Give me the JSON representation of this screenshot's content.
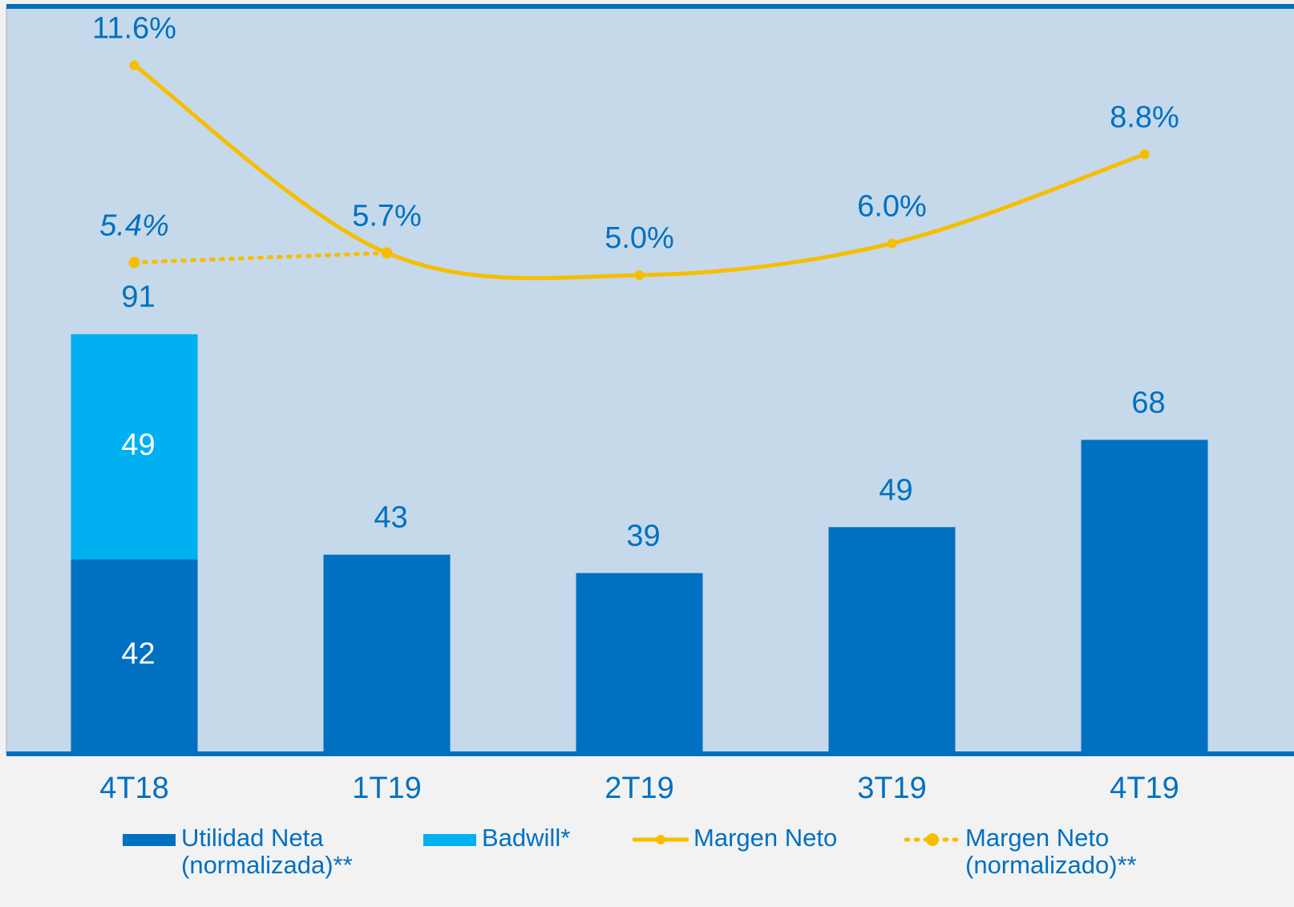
{
  "chart_data": {
    "type": "bar_line",
    "categories": [
      "4T18",
      "1T19",
      "2T19",
      "3T19",
      "4T19"
    ],
    "series": [
      {
        "name": "Utilidad Neta (normalizada)**",
        "type": "bar",
        "color": "#0070c0",
        "values": [
          42,
          43,
          39,
          49,
          68
        ]
      },
      {
        "name": "Badwill*",
        "type": "bar",
        "color": "#00b0f0",
        "values": [
          49,
          null,
          null,
          null,
          null
        ]
      },
      {
        "name": "Margen Neto",
        "type": "line",
        "axis": "y2",
        "color": "#f7bd00",
        "style": "solid",
        "values": [
          11.6,
          5.7,
          5.0,
          6.0,
          8.8
        ],
        "value_labels": [
          "11.6%",
          "5.7%",
          "5.0%",
          "6.0%",
          "8.8%"
        ]
      },
      {
        "name": "Margen Neto (normalizado)**",
        "type": "line",
        "axis": "y2",
        "color": "#f7bd00",
        "style": "dotted",
        "values": [
          5.4,
          5.7,
          null,
          null,
          null
        ],
        "value_labels": [
          "5.4%",
          null,
          null,
          null,
          null
        ]
      }
    ],
    "totals": [
      91,
      null,
      null,
      null,
      null
    ],
    "ylim": [
      0,
      162
    ],
    "y2lim": [
      -10,
      13.4
    ],
    "stacked": true,
    "grid": false
  }
}
